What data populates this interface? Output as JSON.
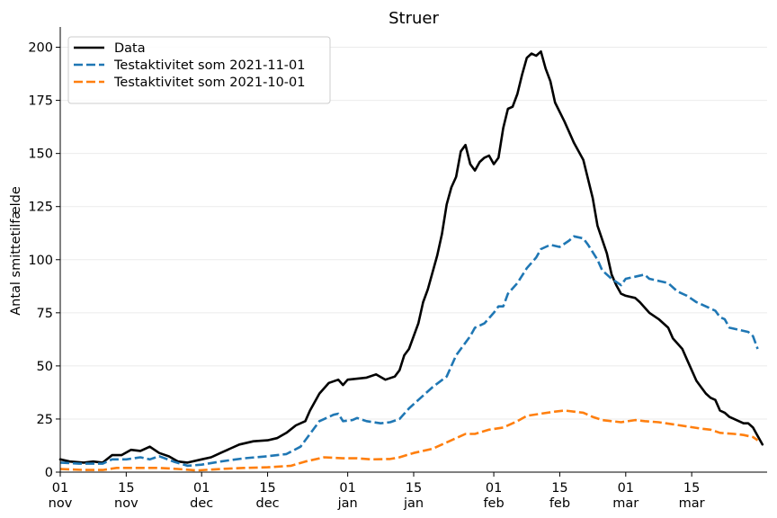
{
  "chart_data": {
    "type": "line",
    "title": "Struer",
    "xlabel": "",
    "ylabel": "Antal smittetilfælde",
    "xlim": [
      "2021-11-01",
      "2022-03-31"
    ],
    "ylim": [
      0,
      207
    ],
    "y_ticks": [
      0,
      25,
      50,
      75,
      100,
      125,
      150,
      175,
      200
    ],
    "x_ticks": [
      {
        "date": "2021-11-01",
        "day": "01",
        "month": "nov"
      },
      {
        "date": "2021-11-15",
        "day": "15",
        "month": "nov"
      },
      {
        "date": "2021-12-01",
        "day": "01",
        "month": "dec"
      },
      {
        "date": "2021-12-15",
        "day": "15",
        "month": "dec"
      },
      {
        "date": "2022-01-01",
        "day": "01",
        "month": "jan"
      },
      {
        "date": "2022-01-15",
        "day": "15",
        "month": "jan"
      },
      {
        "date": "2022-02-01",
        "day": "01",
        "month": "feb"
      },
      {
        "date": "2022-02-15",
        "day": "15",
        "month": "feb"
      },
      {
        "date": "2022-03-01",
        "day": "01",
        "month": "mar"
      },
      {
        "date": "2022-03-15",
        "day": "15",
        "month": "mar"
      }
    ],
    "grid": "horizontal",
    "legend_position": "top-left",
    "series": [
      {
        "name": "Data",
        "color": "#000000",
        "style": "solid",
        "points": [
          [
            "2021-11-01",
            6
          ],
          [
            "2021-11-03",
            5
          ],
          [
            "2021-11-06",
            4.5
          ],
          [
            "2021-11-08",
            5
          ],
          [
            "2021-11-10",
            4.5
          ],
          [
            "2021-11-12",
            8
          ],
          [
            "2021-11-14",
            8
          ],
          [
            "2021-11-16",
            10.5
          ],
          [
            "2021-11-18",
            10
          ],
          [
            "2021-11-20",
            12
          ],
          [
            "2021-11-22",
            9
          ],
          [
            "2021-11-24",
            7.5
          ],
          [
            "2021-11-26",
            5
          ],
          [
            "2021-11-28",
            4.5
          ],
          [
            "2021-12-01",
            6
          ],
          [
            "2021-12-03",
            7
          ],
          [
            "2021-12-05",
            9
          ],
          [
            "2021-12-07",
            11
          ],
          [
            "2021-12-09",
            13
          ],
          [
            "2021-12-12",
            14.5
          ],
          [
            "2021-12-15",
            15
          ],
          [
            "2021-12-17",
            16
          ],
          [
            "2021-12-19",
            18.5
          ],
          [
            "2021-12-21",
            22
          ],
          [
            "2021-12-23",
            24
          ],
          [
            "2021-12-24",
            29
          ],
          [
            "2021-12-26",
            37
          ],
          [
            "2021-12-28",
            42
          ],
          [
            "2021-12-30",
            43.5
          ],
          [
            "2021-12-31",
            41
          ],
          [
            "2022-01-01",
            43.5
          ],
          [
            "2022-01-03",
            44
          ],
          [
            "2022-01-05",
            44.5
          ],
          [
            "2022-01-07",
            46
          ],
          [
            "2022-01-09",
            43.5
          ],
          [
            "2022-01-11",
            45
          ],
          [
            "2022-01-12",
            48
          ],
          [
            "2022-01-13",
            55
          ],
          [
            "2022-01-14",
            58
          ],
          [
            "2022-01-16",
            70
          ],
          [
            "2022-01-17",
            80
          ],
          [
            "2022-01-18",
            86
          ],
          [
            "2022-01-20",
            102
          ],
          [
            "2022-01-21",
            112
          ],
          [
            "2022-01-22",
            126
          ],
          [
            "2022-01-23",
            134
          ],
          [
            "2022-01-24",
            139
          ],
          [
            "2022-01-25",
            151
          ],
          [
            "2022-01-26",
            154
          ],
          [
            "2022-01-27",
            145
          ],
          [
            "2022-01-28",
            142
          ],
          [
            "2022-01-29",
            146
          ],
          [
            "2022-01-30",
            148
          ],
          [
            "2022-01-31",
            149
          ],
          [
            "2022-02-01",
            145
          ],
          [
            "2022-02-02",
            148
          ],
          [
            "2022-02-03",
            162
          ],
          [
            "2022-02-04",
            171
          ],
          [
            "2022-02-05",
            172
          ],
          [
            "2022-02-06",
            178
          ],
          [
            "2022-02-07",
            187
          ],
          [
            "2022-02-08",
            195
          ],
          [
            "2022-02-09",
            197
          ],
          [
            "2022-02-10",
            196
          ],
          [
            "2022-02-11",
            198
          ],
          [
            "2022-02-12",
            190
          ],
          [
            "2022-02-13",
            184
          ],
          [
            "2022-02-14",
            174
          ],
          [
            "2022-02-16",
            165
          ],
          [
            "2022-02-18",
            155
          ],
          [
            "2022-02-20",
            147
          ],
          [
            "2022-02-22",
            129
          ],
          [
            "2022-02-23",
            116
          ],
          [
            "2022-02-25",
            103
          ],
          [
            "2022-02-26",
            93
          ],
          [
            "2022-02-27",
            88
          ],
          [
            "2022-02-28",
            84
          ],
          [
            "2022-03-01",
            83
          ],
          [
            "2022-03-03",
            82
          ],
          [
            "2022-03-04",
            80
          ],
          [
            "2022-03-06",
            75
          ],
          [
            "2022-03-08",
            72
          ],
          [
            "2022-03-10",
            68
          ],
          [
            "2022-03-11",
            63
          ],
          [
            "2022-03-13",
            58
          ],
          [
            "2022-03-14",
            53
          ],
          [
            "2022-03-16",
            43
          ],
          [
            "2022-03-17",
            40
          ],
          [
            "2022-03-18",
            37
          ],
          [
            "2022-03-19",
            35
          ],
          [
            "2022-03-20",
            34
          ],
          [
            "2022-03-21",
            29
          ],
          [
            "2022-03-22",
            28
          ],
          [
            "2022-03-23",
            26
          ],
          [
            "2022-03-25",
            24
          ],
          [
            "2022-03-26",
            23
          ],
          [
            "2022-03-27",
            23
          ],
          [
            "2022-03-28",
            21
          ],
          [
            "2022-03-29",
            17
          ],
          [
            "2022-03-30",
            13
          ]
        ]
      },
      {
        "name": "Testaktivitet som 2021-11-01",
        "color": "#1f77b4",
        "style": "dashed",
        "points": [
          [
            "2021-11-01",
            4.5
          ],
          [
            "2021-11-05",
            4
          ],
          [
            "2021-11-10",
            4
          ],
          [
            "2021-11-12",
            6
          ],
          [
            "2021-11-15",
            6
          ],
          [
            "2021-11-18",
            7
          ],
          [
            "2021-11-20",
            6
          ],
          [
            "2021-11-22",
            7.5
          ],
          [
            "2021-11-25",
            5
          ],
          [
            "2021-11-28",
            3
          ],
          [
            "2021-12-01",
            3.5
          ],
          [
            "2021-12-05",
            5
          ],
          [
            "2021-12-10",
            6.5
          ],
          [
            "2021-12-15",
            7.5
          ],
          [
            "2021-12-19",
            8.5
          ],
          [
            "2021-12-22",
            12
          ],
          [
            "2021-12-24",
            18
          ],
          [
            "2021-12-26",
            24
          ],
          [
            "2021-12-29",
            27
          ],
          [
            "2021-12-30",
            27.5
          ],
          [
            "2021-12-31",
            24
          ],
          [
            "2022-01-02",
            24.5
          ],
          [
            "2022-01-03",
            25.5
          ],
          [
            "2022-01-05",
            24
          ],
          [
            "2022-01-08",
            23
          ],
          [
            "2022-01-10",
            23.5
          ],
          [
            "2022-01-12",
            25
          ],
          [
            "2022-01-14",
            30
          ],
          [
            "2022-01-16",
            34
          ],
          [
            "2022-01-19",
            40
          ],
          [
            "2022-01-22",
            45
          ],
          [
            "2022-01-24",
            55
          ],
          [
            "2022-01-27",
            64
          ],
          [
            "2022-01-28",
            68
          ],
          [
            "2022-01-30",
            70
          ],
          [
            "2022-02-01",
            75
          ],
          [
            "2022-02-02",
            78
          ],
          [
            "2022-02-03",
            78
          ],
          [
            "2022-02-04",
            84
          ],
          [
            "2022-02-06",
            89
          ],
          [
            "2022-02-08",
            96
          ],
          [
            "2022-02-10",
            101
          ],
          [
            "2022-02-11",
            105
          ],
          [
            "2022-02-13",
            107
          ],
          [
            "2022-02-15",
            106
          ],
          [
            "2022-02-17",
            109
          ],
          [
            "2022-02-18",
            111
          ],
          [
            "2022-02-20",
            110
          ],
          [
            "2022-02-21",
            107
          ],
          [
            "2022-02-23",
            100
          ],
          [
            "2022-02-24",
            95
          ],
          [
            "2022-02-26",
            91
          ],
          [
            "2022-02-28",
            88
          ],
          [
            "2022-03-01",
            91
          ],
          [
            "2022-03-03",
            92
          ],
          [
            "2022-03-05",
            93
          ],
          [
            "2022-03-06",
            91
          ],
          [
            "2022-03-08",
            90
          ],
          [
            "2022-03-10",
            89
          ],
          [
            "2022-03-12",
            85
          ],
          [
            "2022-03-14",
            83
          ],
          [
            "2022-03-16",
            80
          ],
          [
            "2022-03-18",
            78
          ],
          [
            "2022-03-20",
            76
          ],
          [
            "2022-03-21",
            73
          ],
          [
            "2022-03-22",
            72
          ],
          [
            "2022-03-23",
            68
          ],
          [
            "2022-03-25",
            67
          ],
          [
            "2022-03-27",
            66
          ],
          [
            "2022-03-28",
            64
          ],
          [
            "2022-03-29",
            58
          ]
        ]
      },
      {
        "name": "Testaktivitet som 2021-10-01",
        "color": "#ff7f0e",
        "style": "dashed",
        "points": [
          [
            "2021-11-01",
            1.5
          ],
          [
            "2021-11-06",
            1
          ],
          [
            "2021-11-10",
            1
          ],
          [
            "2021-11-13",
            2
          ],
          [
            "2021-11-18",
            2
          ],
          [
            "2021-11-22",
            2
          ],
          [
            "2021-11-26",
            1.5
          ],
          [
            "2021-11-30",
            0.8
          ],
          [
            "2021-12-05",
            1.5
          ],
          [
            "2021-12-10",
            2
          ],
          [
            "2021-12-15",
            2.3
          ],
          [
            "2021-12-20",
            3
          ],
          [
            "2021-12-23",
            5
          ],
          [
            "2021-12-27",
            7
          ],
          [
            "2021-12-31",
            6.5
          ],
          [
            "2022-01-03",
            6.5
          ],
          [
            "2022-01-06",
            6
          ],
          [
            "2022-01-10",
            6.2
          ],
          [
            "2022-01-12",
            7
          ],
          [
            "2022-01-15",
            9
          ],
          [
            "2022-01-19",
            11
          ],
          [
            "2022-01-22",
            14
          ],
          [
            "2022-01-26",
            18
          ],
          [
            "2022-01-28",
            18
          ],
          [
            "2022-01-31",
            20
          ],
          [
            "2022-02-03",
            21
          ],
          [
            "2022-02-06",
            24
          ],
          [
            "2022-02-08",
            26.5
          ],
          [
            "2022-02-11",
            27.5
          ],
          [
            "2022-02-14",
            28.5
          ],
          [
            "2022-02-16",
            29
          ],
          [
            "2022-02-20",
            28
          ],
          [
            "2022-02-22",
            26
          ],
          [
            "2022-02-24",
            24.5
          ],
          [
            "2022-02-26",
            24
          ],
          [
            "2022-02-28",
            23.5
          ],
          [
            "2022-03-03",
            24.5
          ],
          [
            "2022-03-05",
            24
          ],
          [
            "2022-03-08",
            23.5
          ],
          [
            "2022-03-11",
            22.5
          ],
          [
            "2022-03-14",
            21.5
          ],
          [
            "2022-03-17",
            20.5
          ],
          [
            "2022-03-19",
            20
          ],
          [
            "2022-03-21",
            18.5
          ],
          [
            "2022-03-24",
            18
          ],
          [
            "2022-03-26",
            17.5
          ],
          [
            "2022-03-28",
            16.5
          ],
          [
            "2022-03-29",
            15
          ]
        ]
      }
    ]
  }
}
